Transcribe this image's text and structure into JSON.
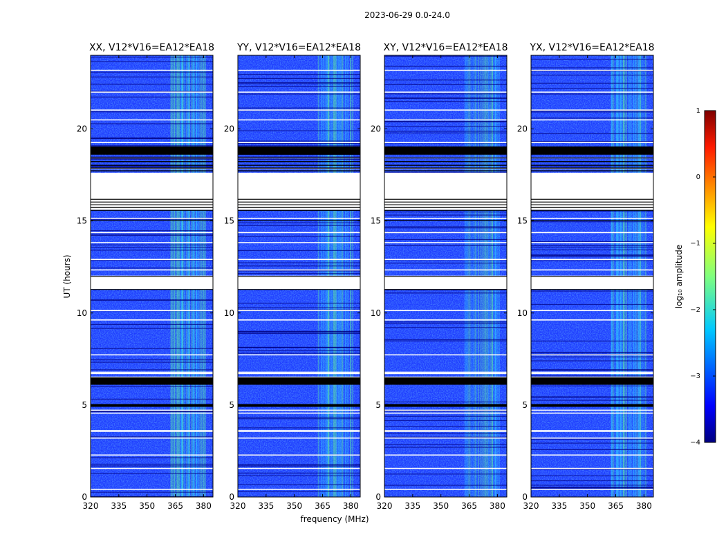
{
  "chart_data": {
    "type": "heatmap",
    "suptitle": "2023-06-29 0.0-24.0",
    "xlabel": "frequency (MHz)",
    "ylabel": "UT (hours)",
    "xlim": [
      320,
      385
    ],
    "ylim": [
      0,
      24
    ],
    "xticks": [
      "320",
      "335",
      "350",
      "365",
      "380"
    ],
    "yticks": [
      "0",
      "5",
      "10",
      "15",
      "20"
    ],
    "panels": [
      {
        "title": "XX, V12*V16=EA12*EA18"
      },
      {
        "title": "YY, V12*V16=EA12*EA18"
      },
      {
        "title": "XY, V12*V16=EA12*EA18"
      },
      {
        "title": "YX, V12*V16=EA12*EA18"
      }
    ],
    "colorbar": {
      "label": "log₁₀ amplitude",
      "range": [
        -4,
        1
      ],
      "ticks": [
        "1",
        "0",
        "−1",
        "−2",
        "−3",
        "−4"
      ]
    },
    "gaps_hours": [
      {
        "from": 15.6,
        "to": 17.6,
        "label": "flagged (white)"
      },
      {
        "from": 11.3,
        "to": 12.0,
        "label": "flagged (white)"
      }
    ],
    "black_bands_hours": [
      {
        "from": 18.6,
        "to": 19.05
      },
      {
        "from": 6.1,
        "to": 6.5
      },
      {
        "from": 4.9,
        "to": 5.05
      }
    ],
    "bright_band_mhz": [
      362.5,
      381
    ]
  }
}
